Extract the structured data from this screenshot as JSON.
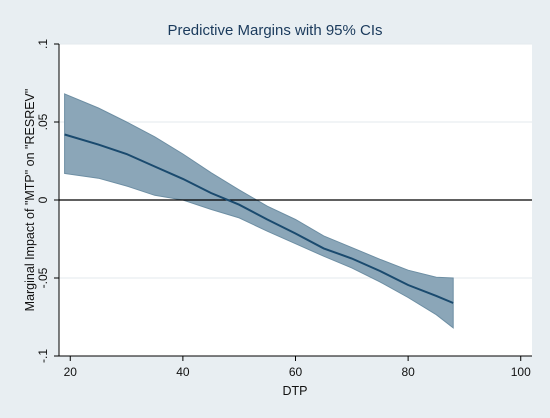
{
  "chart_data": {
    "type": "line",
    "title": "Predictive Margins with 95% CIs",
    "xlabel": "DTP",
    "ylabel": "Marginal Impact of \"MTP\" on \"RESREV\"",
    "xlim": [
      18,
      102
    ],
    "ylim": [
      -0.1,
      0.1
    ],
    "x_ticks": [
      20,
      40,
      60,
      80,
      100
    ],
    "x_tick_labels": [
      "20",
      "40",
      "60",
      "80",
      "100"
    ],
    "y_ticks": [
      -0.1,
      -0.05,
      0,
      0.05,
      0.1
    ],
    "y_tick_labels": [
      "-.1",
      "-.05",
      "0",
      ".05",
      ".1"
    ],
    "grid": true,
    "reference_line_y": 0,
    "series": [
      {
        "x": [
          19,
          25,
          30,
          35,
          40,
          45,
          50,
          55,
          60,
          65,
          70,
          75,
          80,
          85,
          88
        ],
        "y": [
          0.042,
          0.0355,
          0.0295,
          0.0215,
          0.0135,
          0.0045,
          -0.003,
          -0.0125,
          -0.0215,
          -0.031,
          -0.0375,
          -0.0455,
          -0.0545,
          -0.0615,
          -0.066
        ],
        "ci_lower": [
          0.017,
          0.014,
          0.009,
          0.003,
          0.0,
          -0.006,
          -0.0115,
          -0.02,
          -0.028,
          -0.036,
          -0.0435,
          -0.0525,
          -0.0625,
          -0.0735,
          -0.082
        ],
        "ci_upper": [
          0.068,
          0.059,
          0.05,
          0.0405,
          0.0295,
          0.0175,
          0.0065,
          -0.004,
          -0.0125,
          -0.023,
          -0.0305,
          -0.038,
          -0.045,
          -0.0495,
          -0.05
        ]
      }
    ]
  },
  "colors": {
    "background": "#e8eef2",
    "plot_background": "#ffffff",
    "grid": "#e3eaee",
    "line": "#1a4a6e",
    "ci_fill": "#8ba6b8",
    "ci_edge": "#6d8ea3",
    "reference_line": "#000000"
  }
}
